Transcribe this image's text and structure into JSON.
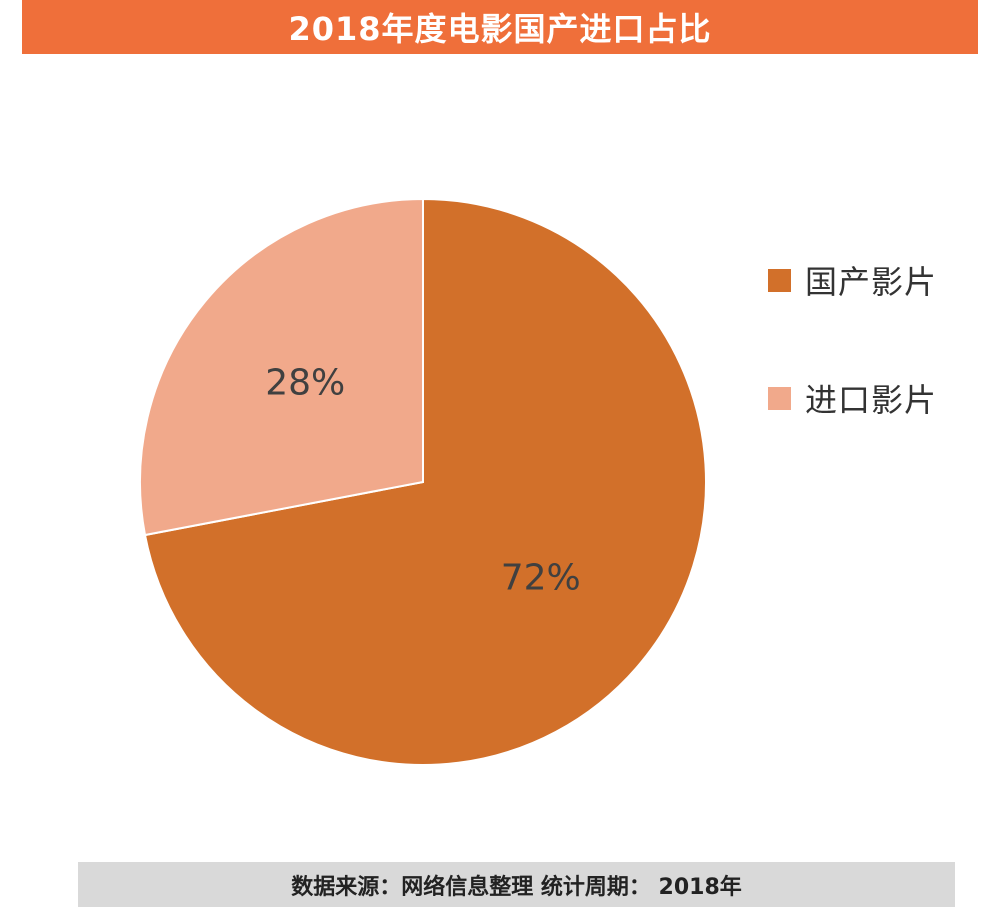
{
  "header": {
    "title": "2018年度电影国产进口占比"
  },
  "chart_data": {
    "type": "pie",
    "title": "2018年度电影国产进口占比",
    "categories": [
      "国产影片",
      "进口影片"
    ],
    "values": [
      72,
      28
    ],
    "labels": [
      "72%",
      "28%"
    ],
    "colors": [
      "#d2702a",
      "#f1a98b"
    ],
    "legend": {
      "placement": "right",
      "entries": [
        "国产影片",
        "进口影片"
      ]
    }
  },
  "footer": {
    "source": "数据来源：网络信息整理  统计周期： 2018年"
  }
}
